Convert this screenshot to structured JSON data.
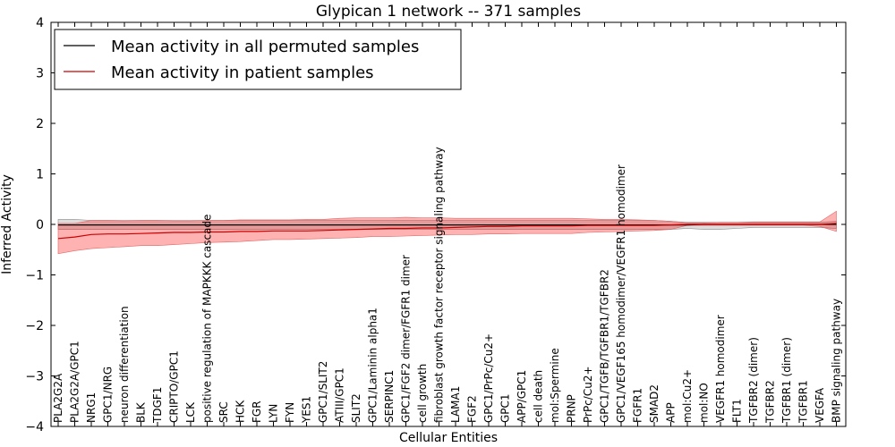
{
  "chart_data": {
    "type": "line",
    "title": "Glypican 1 network -- 371 samples",
    "xlabel": "Cellular Entities",
    "ylabel": "Inferred Activity",
    "ylim": [
      -4,
      4
    ],
    "yticks": [
      -4,
      -3,
      -2,
      -1,
      0,
      1,
      2,
      3,
      4
    ],
    "grid": false,
    "legend_position": "top-left",
    "colors": {
      "permuted_line": "#000000",
      "permuted_band": "#b3b3b3",
      "patient_line": "#cc0000",
      "patient_band": "#ff0000"
    },
    "categories": [
      "PLA2G2A",
      "PLA2G2A/GPC1",
      "NRG1",
      "GPC1/NRG",
      "neuron differentiation",
      "BLK",
      "TDGF1",
      "CRIPTO/GPC1",
      "LCK",
      "positive regulation of MAPKKK cascade",
      "SRC",
      "HCK",
      "FGR",
      "LYN",
      "FYN",
      "YES1",
      "GPC1/SLIT2",
      "ATIII/GPC1",
      "SLIT2",
      "GPC1/Laminin alpha1",
      "SERPINC1",
      "GPC1/FGF2 dimer/FGFR1 dimer",
      "cell growth",
      "fibroblast growth factor receptor signaling pathway",
      "LAMA1",
      "FGF2",
      "GPC1/PrPc/Cu2+",
      "GPC1",
      "APP/GPC1",
      "cell death",
      "mol:Spermine",
      "PRNP",
      "PrPc/Cu2+",
      "GPC1/TGFB/TGFBR1/TGFBR2",
      "GPC1/VEGF165 homodimer/VEGFR1 homodimer",
      "FGFR1",
      "SMAD2",
      "APP",
      "mol:Cu2+",
      "mol:NO",
      "VEGFR1 homodimer",
      "FLT1",
      "TGFBR2 (dimer)",
      "TGFBR2",
      "TGFBR1 (dimer)",
      "TGFBR1",
      "VEGFA",
      "BMP signaling pathway"
    ],
    "series": [
      {
        "name": "Mean activity in all permuted samples",
        "values": [
          -0.01,
          -0.01,
          -0.01,
          -0.01,
          -0.01,
          -0.01,
          -0.01,
          -0.01,
          -0.01,
          -0.01,
          -0.01,
          -0.01,
          -0.01,
          -0.01,
          -0.01,
          -0.01,
          -0.01,
          -0.01,
          -0.01,
          -0.01,
          -0.01,
          -0.01,
          -0.01,
          -0.01,
          -0.01,
          -0.01,
          -0.01,
          -0.01,
          -0.01,
          -0.01,
          -0.01,
          -0.01,
          -0.01,
          -0.01,
          -0.01,
          -0.01,
          -0.01,
          -0.01,
          -0.01,
          0.0,
          0.0,
          0.0,
          0.0,
          0.0,
          0.0,
          0.0,
          0.0,
          0.0
        ],
        "lower": [
          -0.1,
          -0.1,
          -0.1,
          -0.1,
          -0.1,
          -0.1,
          -0.1,
          -0.1,
          -0.1,
          -0.1,
          -0.1,
          -0.1,
          -0.1,
          -0.1,
          -0.1,
          -0.1,
          -0.1,
          -0.1,
          -0.1,
          -0.1,
          -0.1,
          -0.1,
          -0.1,
          -0.1,
          -0.1,
          -0.1,
          -0.1,
          -0.1,
          -0.1,
          -0.1,
          -0.1,
          -0.1,
          -0.1,
          -0.1,
          -0.1,
          -0.1,
          -0.1,
          -0.1,
          -0.08,
          -0.1,
          -0.1,
          -0.08,
          -0.06,
          -0.06,
          -0.06,
          -0.06,
          -0.06,
          -0.08
        ],
        "upper": [
          0.1,
          0.1,
          0.08,
          0.08,
          0.08,
          0.08,
          0.08,
          0.08,
          0.08,
          0.08,
          0.08,
          0.08,
          0.08,
          0.08,
          0.08,
          0.08,
          0.08,
          0.08,
          0.08,
          0.08,
          0.08,
          0.08,
          0.08,
          0.08,
          0.08,
          0.08,
          0.08,
          0.08,
          0.08,
          0.08,
          0.08,
          0.08,
          0.08,
          0.08,
          0.08,
          0.08,
          0.08,
          0.06,
          0.04,
          0.04,
          0.04,
          0.04,
          0.04,
          0.04,
          0.04,
          0.04,
          0.04,
          0.06
        ]
      },
      {
        "name": "Mean activity in patient samples",
        "values": [
          -0.28,
          -0.25,
          -0.2,
          -0.19,
          -0.19,
          -0.18,
          -0.17,
          -0.16,
          -0.16,
          -0.15,
          -0.15,
          -0.14,
          -0.14,
          -0.13,
          -0.13,
          -0.13,
          -0.12,
          -0.11,
          -0.1,
          -0.09,
          -0.08,
          -0.08,
          -0.07,
          -0.07,
          -0.06,
          -0.05,
          -0.04,
          -0.04,
          -0.03,
          -0.03,
          -0.03,
          -0.03,
          -0.02,
          -0.02,
          -0.02,
          -0.02,
          -0.02,
          -0.01,
          0.0,
          0.0,
          0.0,
          0.0,
          0.0,
          0.0,
          0.0,
          0.0,
          0.0,
          0.02
        ],
        "lower": [
          -0.58,
          -0.52,
          -0.48,
          -0.46,
          -0.44,
          -0.42,
          -0.42,
          -0.4,
          -0.38,
          -0.36,
          -0.35,
          -0.34,
          -0.32,
          -0.3,
          -0.3,
          -0.29,
          -0.28,
          -0.27,
          -0.26,
          -0.24,
          -0.24,
          -0.23,
          -0.22,
          -0.21,
          -0.2,
          -0.2,
          -0.19,
          -0.19,
          -0.18,
          -0.18,
          -0.18,
          -0.18,
          -0.16,
          -0.15,
          -0.14,
          -0.13,
          -0.12,
          -0.1,
          -0.02,
          -0.02,
          -0.02,
          -0.02,
          -0.02,
          -0.02,
          -0.02,
          -0.02,
          -0.04,
          -0.14
        ],
        "upper": [
          0.02,
          0.02,
          0.08,
          0.08,
          0.07,
          0.08,
          0.08,
          0.07,
          0.07,
          0.08,
          0.08,
          0.09,
          0.09,
          0.09,
          0.09,
          0.1,
          0.1,
          0.12,
          0.13,
          0.13,
          0.13,
          0.14,
          0.13,
          0.13,
          0.12,
          0.12,
          0.12,
          0.12,
          0.12,
          0.12,
          0.12,
          0.12,
          0.11,
          0.1,
          0.1,
          0.09,
          0.08,
          0.06,
          0.03,
          0.03,
          0.04,
          0.04,
          0.05,
          0.05,
          0.05,
          0.05,
          0.05,
          0.26
        ]
      }
    ]
  }
}
